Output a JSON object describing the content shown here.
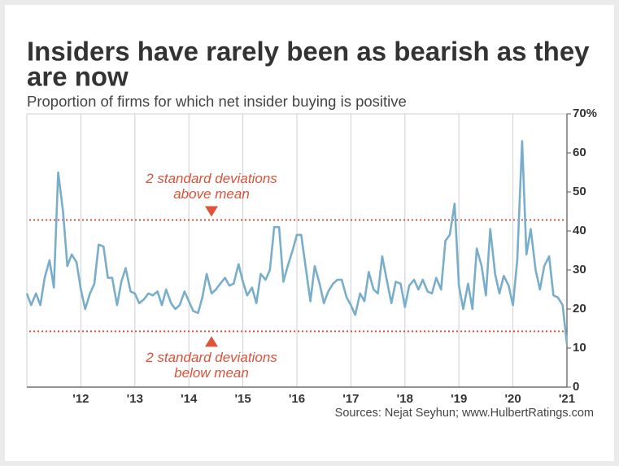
{
  "chart_data": {
    "type": "line",
    "title": [
      "Insiders have rarely been as bearish as they",
      "are now"
    ],
    "subtitle": "Proportion of firms for which net insider buying is positive",
    "source": "Sources: Nejat Seyhun; www.HulbertRatings.com",
    "color": "#79aecb",
    "x": [
      2011,
      2011.08,
      2011.17,
      2011.25,
      2011.33,
      2011.42,
      2011.5,
      2011.58,
      2011.67,
      2011.75,
      2011.83,
      2011.92,
      2012,
      2012.08,
      2012.17,
      2012.25,
      2012.33,
      2012.42,
      2012.5,
      2012.58,
      2012.67,
      2012.75,
      2012.83,
      2012.92,
      2013,
      2013.08,
      2013.17,
      2013.25,
      2013.33,
      2013.42,
      2013.5,
      2013.58,
      2013.67,
      2013.75,
      2013.83,
      2013.92,
      2014,
      2014.08,
      2014.17,
      2014.25,
      2014.33,
      2014.42,
      2014.5,
      2014.58,
      2014.67,
      2014.75,
      2014.83,
      2014.92,
      2015,
      2015.08,
      2015.17,
      2015.25,
      2015.33,
      2015.42,
      2015.5,
      2015.58,
      2015.67,
      2015.75,
      2015.83,
      2015.92,
      2016,
      2016.08,
      2016.17,
      2016.25,
      2016.33,
      2016.42,
      2016.5,
      2016.58,
      2016.67,
      2016.75,
      2016.83,
      2016.92,
      2017,
      2017.08,
      2017.17,
      2017.25,
      2017.33,
      2017.42,
      2017.5,
      2017.58,
      2017.67,
      2017.75,
      2017.83,
      2017.92,
      2018,
      2018.08,
      2018.17,
      2018.25,
      2018.33,
      2018.42,
      2018.5,
      2018.58,
      2018.67,
      2018.75,
      2018.83,
      2018.92,
      2019,
      2019.08,
      2019.17,
      2019.25,
      2019.33,
      2019.42,
      2019.5,
      2019.58,
      2019.67,
      2019.75,
      2019.83,
      2019.92,
      2020,
      2020.08,
      2020.17,
      2020.25,
      2020.33,
      2020.42,
      2020.5,
      2020.58,
      2020.67,
      2020.75,
      2020.83,
      2020.92,
      2021
    ],
    "values": [
      24,
      21,
      24,
      21,
      28,
      32.5,
      25.5,
      55,
      45,
      31,
      34,
      32,
      25,
      20,
      24,
      26.5,
      36.5,
      36,
      28,
      28,
      21,
      27,
      30.5,
      24.5,
      24,
      21.5,
      22.5,
      24,
      23.5,
      24.5,
      21,
      25,
      21.5,
      20,
      21,
      24.5,
      22,
      19.5,
      19,
      23,
      29,
      24,
      25,
      26.5,
      28,
      26,
      26.5,
      31.5,
      27,
      23.5,
      25.5,
      21.5,
      29,
      27.5,
      30,
      41,
      41,
      27,
      31,
      35,
      39,
      39,
      30,
      22,
      31,
      26.5,
      21.5,
      24.5,
      26.5,
      27.5,
      27.5,
      23,
      21,
      18.5,
      24,
      22,
      29.5,
      25,
      24,
      33.5,
      27,
      21.5,
      27,
      26.5,
      20.5,
      26,
      27.5,
      25,
      27.5,
      24.5,
      24,
      28,
      25,
      37.5,
      39,
      47,
      26,
      20,
      26.5,
      20,
      35.5,
      31,
      23.5,
      40.5,
      29,
      24,
      28.5,
      26,
      21,
      32.5,
      63,
      34,
      40.5,
      30,
      25,
      31,
      33.5,
      23.5,
      23,
      21,
      11
    ],
    "xlim": [
      2011,
      2021
    ],
    "xticks": [
      {
        "value": 2012,
        "label": "'12"
      },
      {
        "value": 2013,
        "label": "'13"
      },
      {
        "value": 2014,
        "label": "'14"
      },
      {
        "value": 2015,
        "label": "'15"
      },
      {
        "value": 2016,
        "label": "'16"
      },
      {
        "value": 2017,
        "label": "'17"
      },
      {
        "value": 2018,
        "label": "'18"
      },
      {
        "value": 2019,
        "label": "'19"
      },
      {
        "value": 2020,
        "label": "'20"
      },
      {
        "value": 2021,
        "label": "'21"
      }
    ],
    "ylim": [
      0,
      70
    ],
    "yticks": [
      0,
      10,
      20,
      30,
      40,
      50,
      60,
      {
        "value": 70,
        "label": "70%"
      }
    ],
    "reference_lines": [
      {
        "value": 42.8,
        "color": "#e0533b",
        "label": [
          "2 standard deviations",
          "above mean"
        ]
      },
      {
        "value": 14.3,
        "color": "#e0533b",
        "label": [
          "2 standard deviations",
          "below mean"
        ]
      }
    ]
  }
}
